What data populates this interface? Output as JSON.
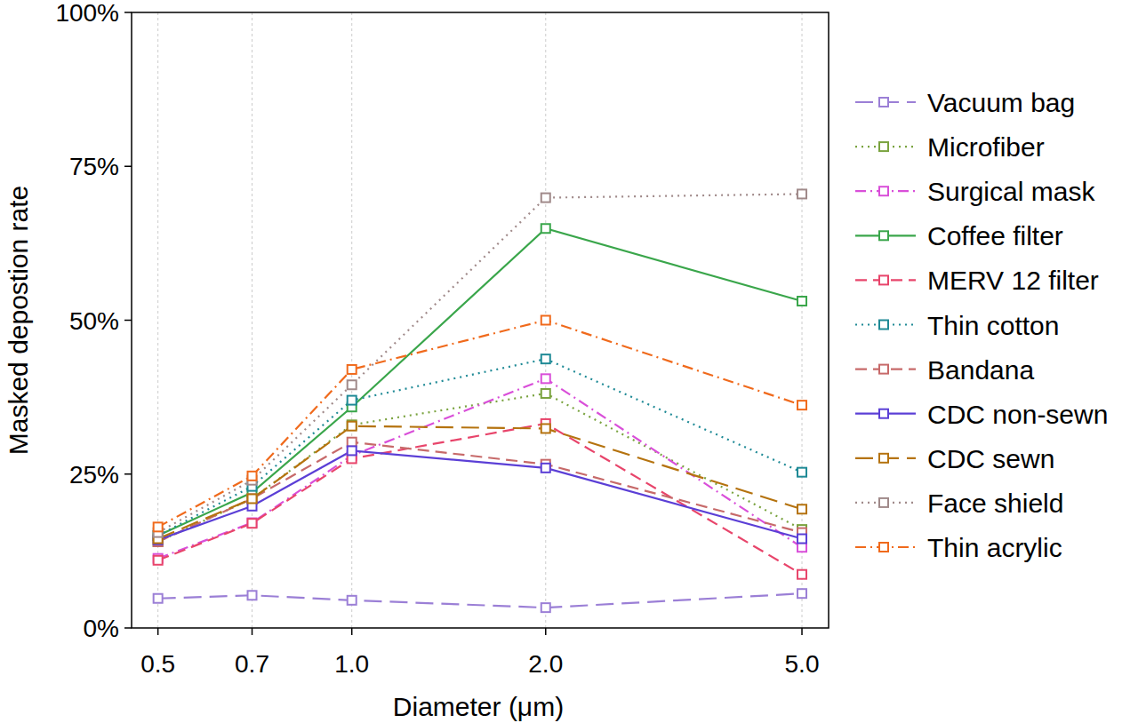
{
  "chart_data": {
    "type": "line",
    "x_label": "Diameter (μm)",
    "y_label": "Masked depostion rate",
    "x": [
      0.5,
      0.7,
      1.0,
      2.0,
      5.0
    ],
    "xlim": [
      0.455,
      5.5
    ],
    "xticks": [
      0.5,
      0.7,
      {
        "value": 1.0,
        "label": "1.0"
      },
      {
        "value": 2.0,
        "label": "2.0"
      },
      {
        "value": 5.0,
        "label": "5.0"
      }
    ],
    "log": "x",
    "ylim": [
      0,
      100
    ],
    "yticks": [
      {
        "value": 0,
        "label": "0%"
      },
      {
        "value": 25,
        "label": "25%"
      },
      {
        "value": 50,
        "label": "50%"
      },
      {
        "value": 75,
        "label": "75%"
      },
      {
        "value": 100,
        "label": "100%"
      }
    ],
    "grid": "x",
    "legend": "right",
    "marker": "square",
    "series": [
      {
        "name": "Vacuum bag",
        "color": "#9b7fd6",
        "line_style": "longdash",
        "values": [
          4.8,
          5.3,
          4.5,
          3.3,
          5.6
        ]
      },
      {
        "name": "Microfiber",
        "color": "#7aa33f",
        "line_style": "dotted",
        "values": [
          14.0,
          21.0,
          33.0,
          38.1,
          16.0
        ]
      },
      {
        "name": "Surgical mask",
        "color": "#d94fd9",
        "line_style": "dashdot",
        "values": [
          11.3,
          17.1,
          28.0,
          40.5,
          13.1
        ]
      },
      {
        "name": "Coffee filter",
        "color": "#3aa64b",
        "line_style": "solid",
        "values": [
          15.0,
          22.0,
          35.9,
          64.9,
          53.1
        ]
      },
      {
        "name": "MERV 12 filter",
        "color": "#e8456b",
        "line_style": "dashed",
        "values": [
          11.0,
          17.0,
          27.5,
          33.2,
          8.7
        ]
      },
      {
        "name": "Thin cotton",
        "color": "#1f8a96",
        "line_style": "dotted",
        "values": [
          15.0,
          23.0,
          37.0,
          43.7,
          25.3
        ]
      },
      {
        "name": "Bandana",
        "color": "#c76a6a",
        "line_style": "dashed",
        "values": [
          14.0,
          21.0,
          30.2,
          26.6,
          15.5
        ]
      },
      {
        "name": "CDC non-sewn",
        "color": "#5b3fd6",
        "line_style": "solid",
        "values": [
          14.3,
          19.8,
          28.8,
          26.0,
          14.5
        ]
      },
      {
        "name": "CDC sewn",
        "color": "#b5730f",
        "line_style": "longdash",
        "values": [
          14.5,
          21.0,
          32.8,
          32.4,
          19.3
        ]
      },
      {
        "name": "Face shield",
        "color": "#a08a8a",
        "line_style": "dotted",
        "values": [
          15.5,
          24.0,
          39.5,
          69.9,
          70.5
        ]
      },
      {
        "name": "Thin acrylic",
        "color": "#f06a1c",
        "line_style": "dashdot",
        "values": [
          16.4,
          24.7,
          42.0,
          50.0,
          36.2
        ]
      }
    ]
  }
}
